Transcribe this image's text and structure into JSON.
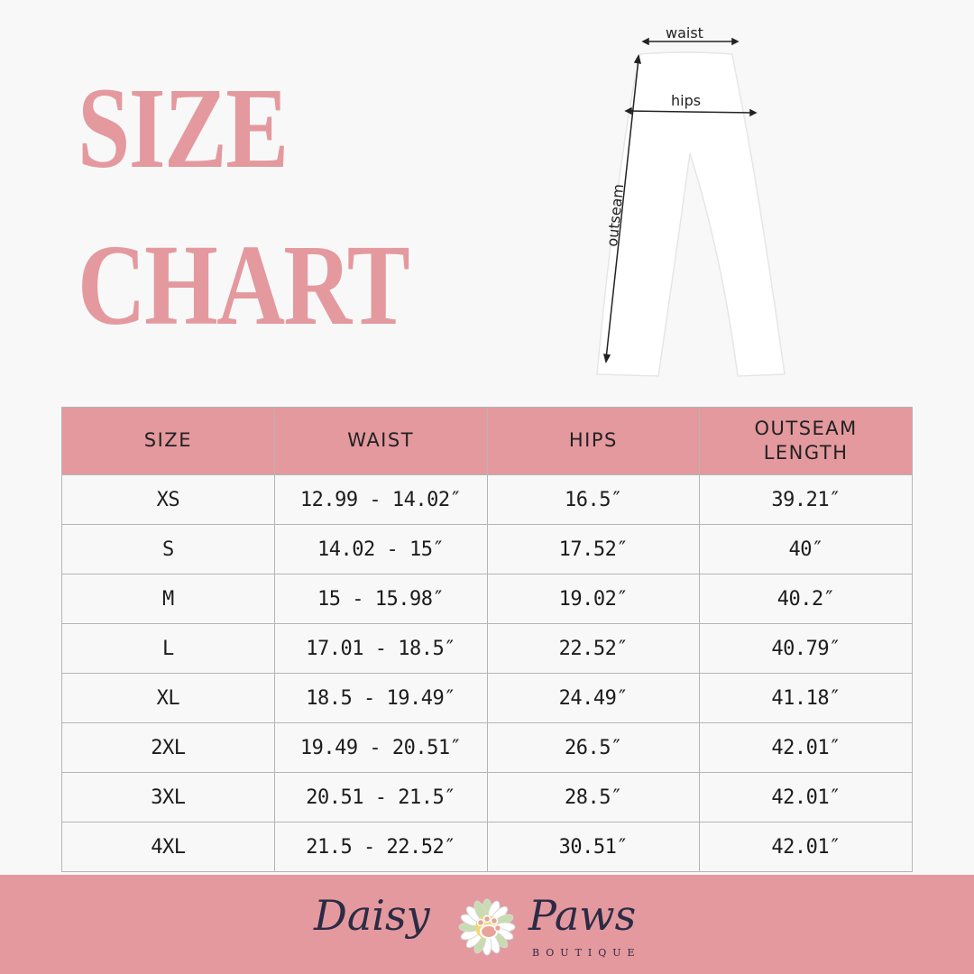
{
  "title": {
    "line1": "SIZE",
    "line2": "CHART"
  },
  "diagram": {
    "waist_label": "waist",
    "hips_label": "hips",
    "outseam_label": "outseam"
  },
  "table": {
    "headers": [
      "SIZE",
      "WAIST",
      "HIPS",
      "OUTSEAM LENGTH"
    ],
    "rows": [
      [
        "XS",
        "12.99 - 14.02″",
        "16.5″",
        "39.21″"
      ],
      [
        "S",
        "14.02 - 15″",
        "17.52″",
        "40″"
      ],
      [
        "M",
        "15 - 15.98″",
        "19.02″",
        "40.2″"
      ],
      [
        "L",
        "17.01 - 18.5″",
        "22.52″",
        "40.79″"
      ],
      [
        "XL",
        "18.5 - 19.49″",
        "24.49″",
        "41.18″"
      ],
      [
        "2XL",
        "19.49 - 20.51″",
        "26.5″",
        "42.01″"
      ],
      [
        "3XL",
        "20.51 - 21.5″",
        "28.5″",
        "42.01″"
      ],
      [
        "4XL",
        "21.5 - 22.52″",
        "30.51″",
        "42.01″"
      ]
    ]
  },
  "footer": {
    "brand_left": "Daisy",
    "brand_right": "Paws",
    "brand_sub": "BOUTIQUE",
    "logo_icon": "daisy-paw-icon"
  },
  "colors": {
    "accent": "#e4999e",
    "background": "#f8f8f8",
    "text": "#1c1c1c"
  }
}
